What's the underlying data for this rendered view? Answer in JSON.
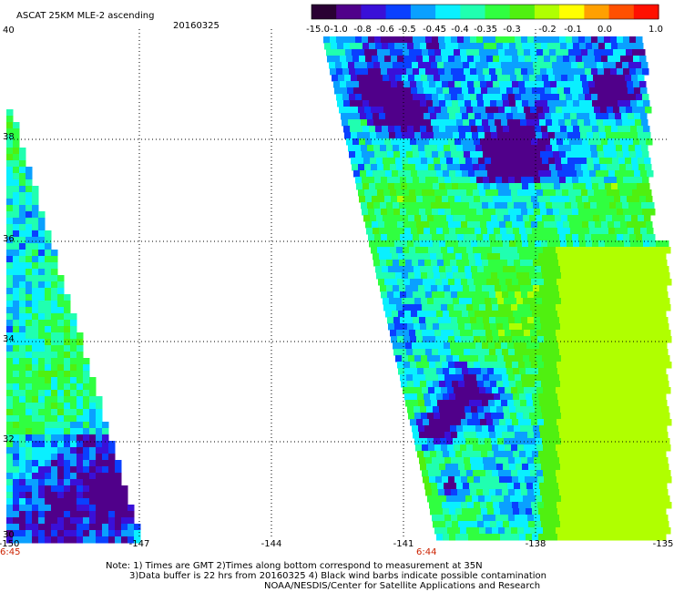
{
  "header": {
    "title": "ASCAT 25KM MLE-2 ascending",
    "date": "20160325"
  },
  "colorbar": {
    "labels": [
      "-15.0",
      "-1.0",
      "-0.8",
      "-0.6",
      "-0.5",
      "-0.45",
      "-0.4",
      "-0.35",
      "-0.3",
      "-0.2",
      "-0.1",
      "0.0",
      "1.0"
    ],
    "colors": [
      "#2a0033",
      "#50008a",
      "#3a10d8",
      "#0a40ff",
      "#0aa0ff",
      "#0af0ff",
      "#20ffb0",
      "#30ff40",
      "#50f010",
      "#b0ff00",
      "#ffff00",
      "#ffa000",
      "#ff5000",
      "#ff1000"
    ]
  },
  "axes": {
    "x_ticks": [
      "-150",
      "-147",
      "-144",
      "-141",
      "-138",
      "-135"
    ],
    "y_ticks": [
      "40",
      "38",
      "36",
      "34",
      "32",
      "30"
    ],
    "time_labels": [
      "6:45",
      "6:44"
    ]
  },
  "notes": {
    "line1": "Note: 1) Times are GMT 2)Times along bottom correspond to measurement at 35N",
    "line2": "3)Data buffer is 22 hrs from 20160325 4) Black wind barbs indicate possible contamination",
    "line3": "NOAA/NESDIS/Center for Satellite Applications and Research"
  }
}
